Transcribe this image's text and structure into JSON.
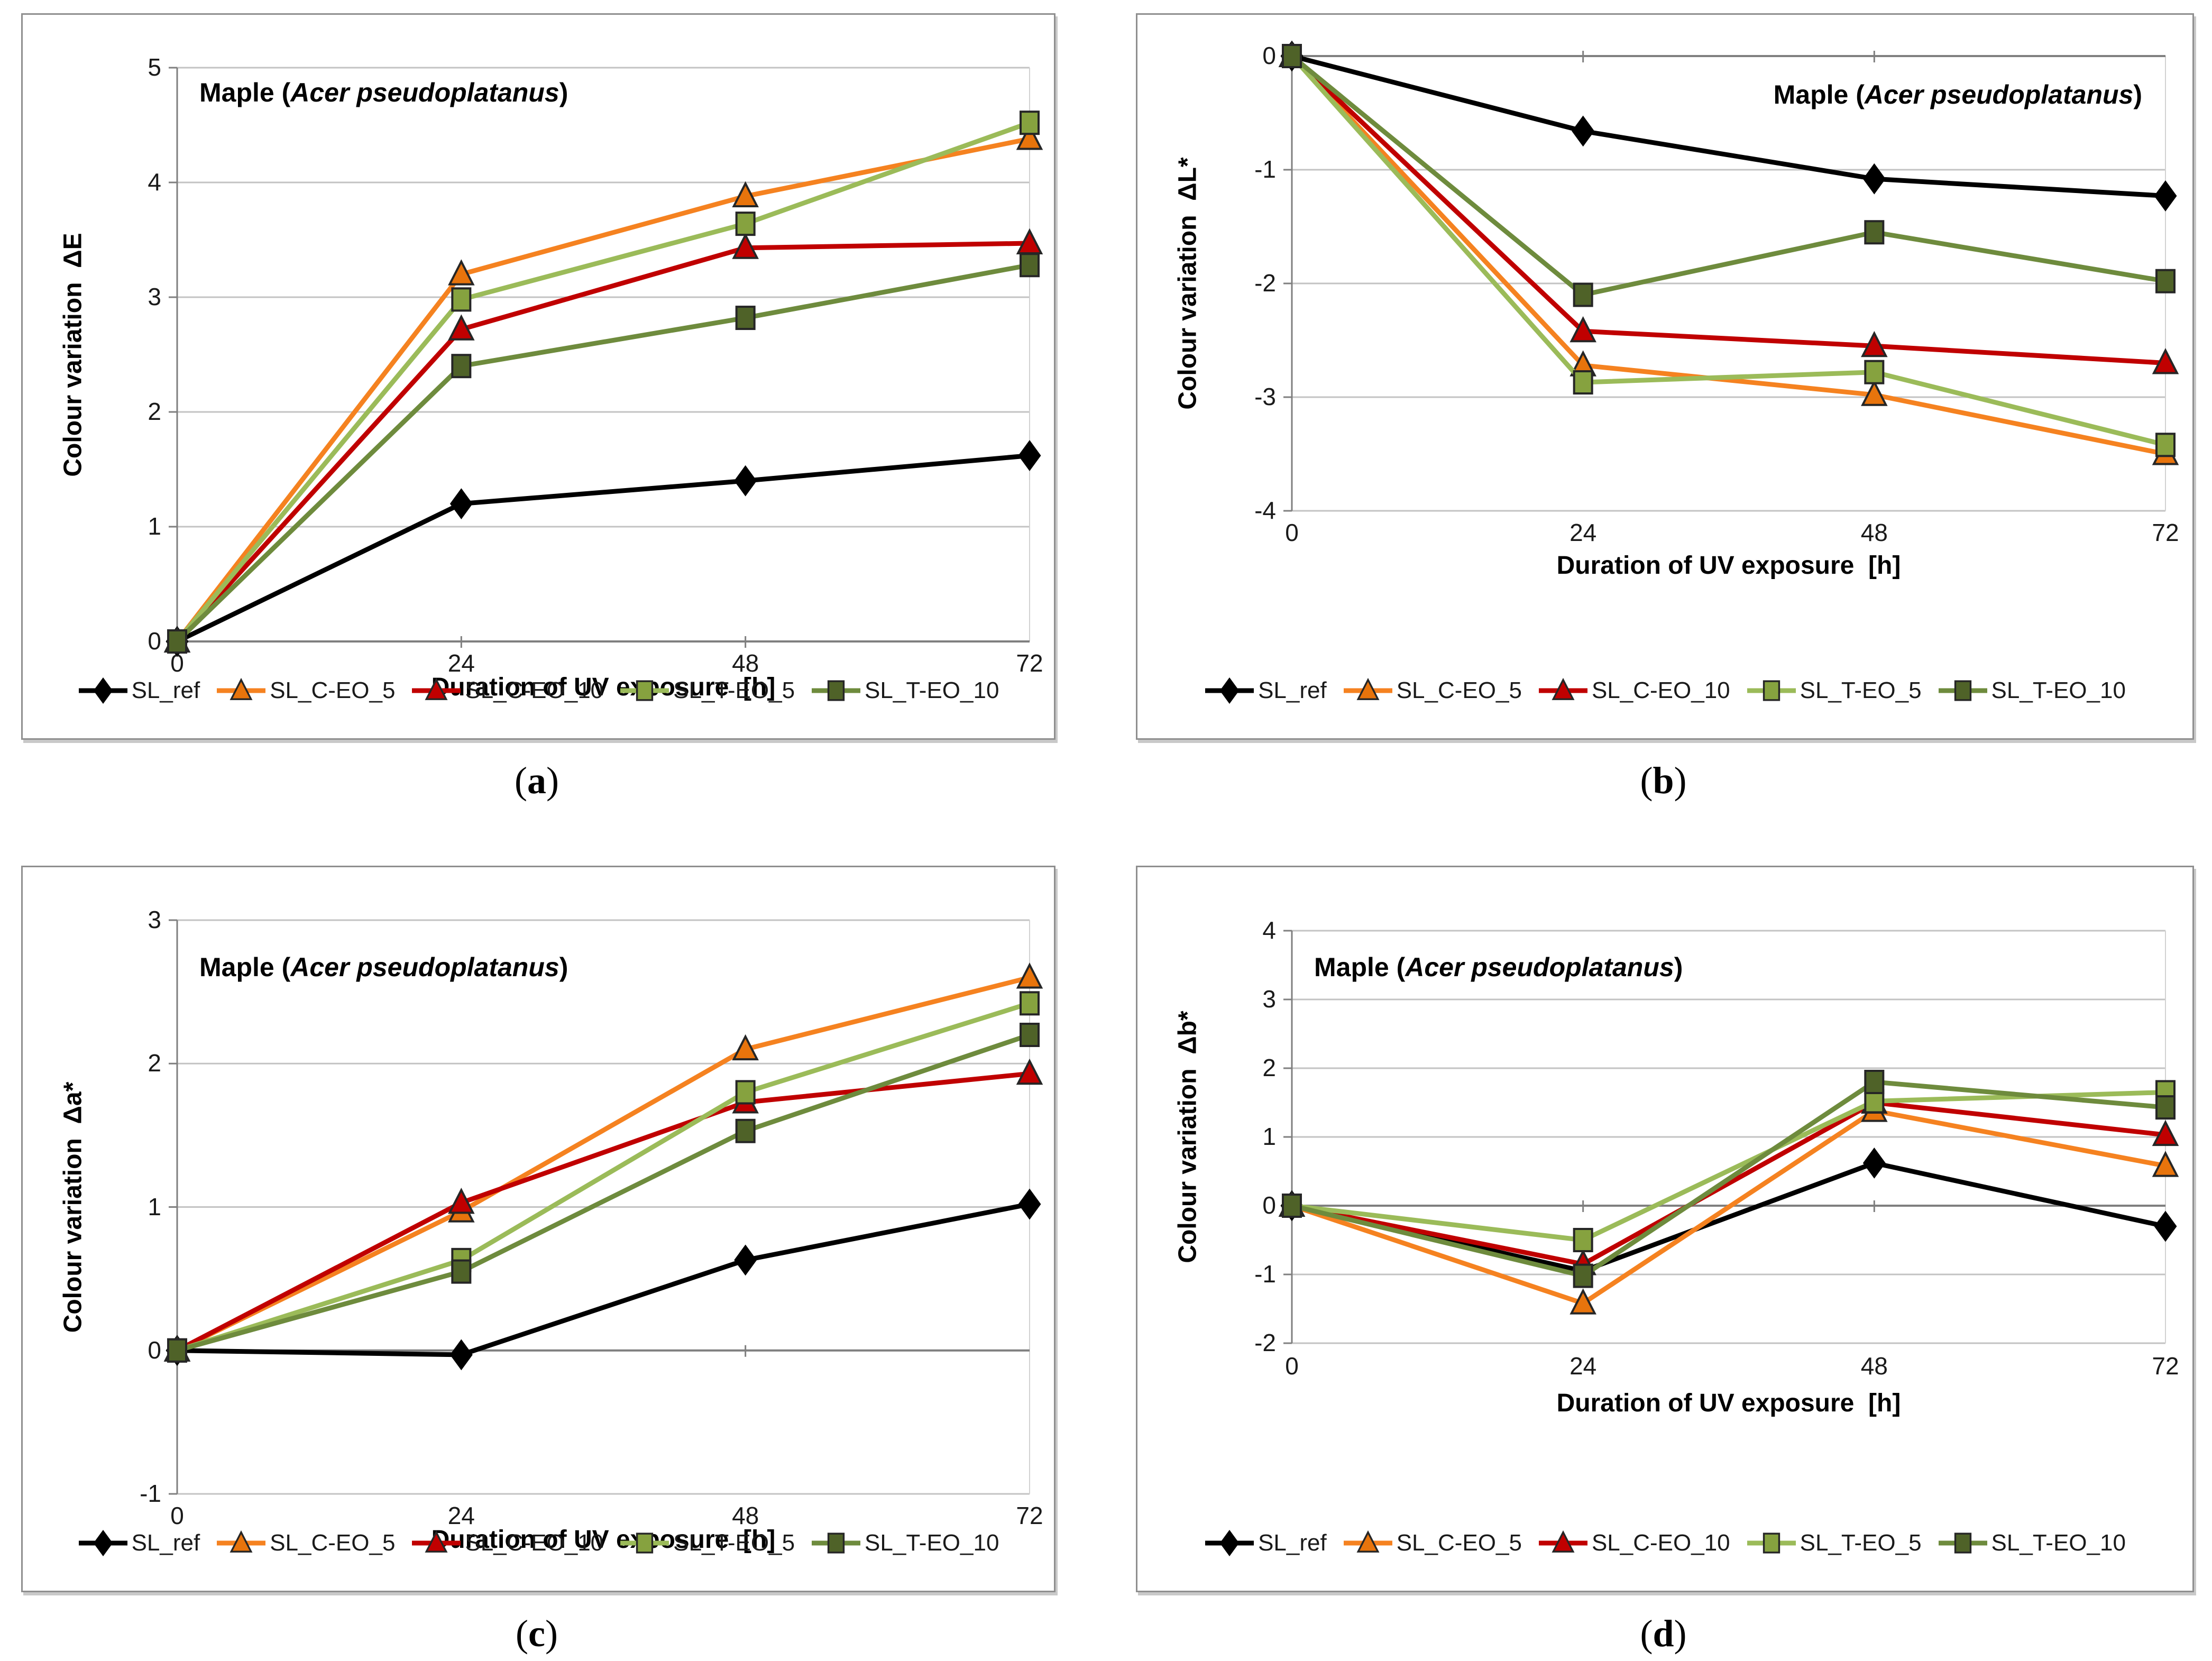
{
  "figure": {
    "background": "#ffffff",
    "x_tick_labels": [
      "0",
      "24",
      "48",
      "72"
    ],
    "grid_color": "#c3c3c3",
    "axis_color": "#7f7f7f"
  },
  "chart_data": [
    {
      "type": "line",
      "panel": "a",
      "caption_pre": "(",
      "caption_letter": "a",
      "caption_post": ")",
      "title_prefix": "Maple (",
      "title_italic": "Acer pseudoplatanus",
      "title_suffix": ")",
      "title_align": "left",
      "xlabel": "Duration of UV exposure  [h]",
      "ylabel": "Colour variation  ΔE",
      "x": [
        0,
        24,
        48,
        72
      ],
      "ylim": [
        0,
        5
      ],
      "yticks": [
        5,
        4,
        3,
        2,
        1,
        0
      ],
      "grid": true,
      "legend_position": "bottom",
      "series": [
        {
          "name": "SL_ref",
          "marker": "diamond",
          "line_color": "#000000",
          "marker_color": "#000000",
          "values": [
            0,
            1.2,
            1.4,
            1.62
          ]
        },
        {
          "name": "SL_C-EO_5",
          "marker": "triangle",
          "line_color": "#F58220",
          "marker_color": "#E8740C",
          "values": [
            0,
            3.2,
            3.88,
            4.38
          ]
        },
        {
          "name": "SL_C-EO_10",
          "marker": "triangle",
          "line_color": "#C00000",
          "marker_color": "#C00000",
          "values": [
            0,
            2.72,
            3.43,
            3.47
          ]
        },
        {
          "name": "SL_T-EO_5",
          "marker": "square",
          "line_color": "#9BBB59",
          "marker_color": "#86A23F",
          "values": [
            0,
            2.98,
            3.64,
            4.52
          ]
        },
        {
          "name": "SL_T-EO_10",
          "marker": "square",
          "line_color": "#6E8B3D",
          "marker_color": "#4F6228",
          "values": [
            0,
            2.4,
            2.82,
            3.28
          ]
        }
      ]
    },
    {
      "type": "line",
      "panel": "b",
      "caption_pre": "(",
      "caption_letter": "b",
      "caption_post": ")",
      "title_prefix": "Maple (",
      "title_italic": "Acer pseudoplatanus",
      "title_suffix": ")",
      "title_align": "right",
      "xlabel": "Duration of UV exposure  [h]",
      "ylabel": "Colour variation  ΔL*",
      "x": [
        0,
        24,
        48,
        72
      ],
      "ylim": [
        -4,
        0
      ],
      "yticks": [
        0,
        -1,
        -2,
        -3,
        -4
      ],
      "grid": true,
      "legend_position": "bottom",
      "series": [
        {
          "name": "SL_ref",
          "marker": "diamond",
          "line_color": "#000000",
          "marker_color": "#000000",
          "values": [
            0,
            -0.66,
            -1.08,
            -1.23
          ]
        },
        {
          "name": "SL_C-EO_5",
          "marker": "triangle",
          "line_color": "#F58220",
          "marker_color": "#E8740C",
          "values": [
            0,
            -2.72,
            -2.98,
            -3.5
          ]
        },
        {
          "name": "SL_C-EO_10",
          "marker": "triangle",
          "line_color": "#C00000",
          "marker_color": "#C00000",
          "values": [
            0,
            -2.42,
            -2.55,
            -2.7
          ]
        },
        {
          "name": "SL_T-EO_5",
          "marker": "square",
          "line_color": "#9BBB59",
          "marker_color": "#86A23F",
          "values": [
            0,
            -2.87,
            -2.78,
            -3.42
          ]
        },
        {
          "name": "SL_T-EO_10",
          "marker": "square",
          "line_color": "#6E8B3D",
          "marker_color": "#4F6228",
          "values": [
            0,
            -2.1,
            -1.55,
            -1.98
          ]
        }
      ]
    },
    {
      "type": "line",
      "panel": "c",
      "caption_pre": "(",
      "caption_letter": "c",
      "caption_post": ")",
      "title_prefix": "Maple (",
      "title_italic": "Acer pseudoplatanus",
      "title_suffix": ")",
      "title_align": "left",
      "xlabel": "Duration of UV exposure  [h]",
      "ylabel": "Colour variation  Δa*",
      "x": [
        0,
        24,
        48,
        72
      ],
      "ylim": [
        -1,
        3
      ],
      "yticks": [
        3,
        2,
        1,
        0,
        -1
      ],
      "grid": true,
      "legend_position": "bottom",
      "series": [
        {
          "name": "SL_ref",
          "marker": "diamond",
          "line_color": "#000000",
          "marker_color": "#000000",
          "values": [
            0,
            -0.03,
            0.63,
            1.02
          ]
        },
        {
          "name": "SL_C-EO_5",
          "marker": "triangle",
          "line_color": "#F58220",
          "marker_color": "#E8740C",
          "values": [
            0,
            0.97,
            2.1,
            2.6
          ]
        },
        {
          "name": "SL_C-EO_10",
          "marker": "triangle",
          "line_color": "#C00000",
          "marker_color": "#C00000",
          "values": [
            0,
            1.03,
            1.73,
            1.93
          ]
        },
        {
          "name": "SL_T-EO_5",
          "marker": "square",
          "line_color": "#9BBB59",
          "marker_color": "#86A23F",
          "values": [
            0,
            0.63,
            1.8,
            2.42
          ]
        },
        {
          "name": "SL_T-EO_10",
          "marker": "square",
          "line_color": "#6E8B3D",
          "marker_color": "#4F6228",
          "values": [
            0,
            0.55,
            1.53,
            2.2
          ]
        }
      ]
    },
    {
      "type": "line",
      "panel": "d",
      "caption_pre": "(",
      "caption_letter": "d",
      "caption_post": ")",
      "title_prefix": "Maple (",
      "title_italic": "Acer pseudoplatanus",
      "title_suffix": ")",
      "title_align": "left",
      "xlabel": "Duration of UV exposure  [h]",
      "ylabel": "Colour variation  Δb*",
      "x": [
        0,
        24,
        48,
        72
      ],
      "ylim": [
        -2,
        4
      ],
      "yticks": [
        4,
        3,
        2,
        1,
        0,
        -1,
        -2
      ],
      "grid": true,
      "legend_position": "bottom",
      "series": [
        {
          "name": "SL_ref",
          "marker": "diamond",
          "line_color": "#000000",
          "marker_color": "#000000",
          "values": [
            0,
            -0.95,
            0.62,
            -0.3
          ]
        },
        {
          "name": "SL_C-EO_5",
          "marker": "triangle",
          "line_color": "#F58220",
          "marker_color": "#E8740C",
          "values": [
            0,
            -1.42,
            1.38,
            0.58
          ]
        },
        {
          "name": "SL_C-EO_10",
          "marker": "triangle",
          "line_color": "#C00000",
          "marker_color": "#C00000",
          "values": [
            0,
            -0.85,
            1.5,
            1.03
          ]
        },
        {
          "name": "SL_T-EO_5",
          "marker": "square",
          "line_color": "#9BBB59",
          "marker_color": "#86A23F",
          "values": [
            0,
            -0.5,
            1.52,
            1.65
          ]
        },
        {
          "name": "SL_T-EO_10",
          "marker": "square",
          "line_color": "#6E8B3D",
          "marker_color": "#4F6228",
          "values": [
            0,
            -1.02,
            1.8,
            1.43
          ]
        }
      ]
    }
  ]
}
